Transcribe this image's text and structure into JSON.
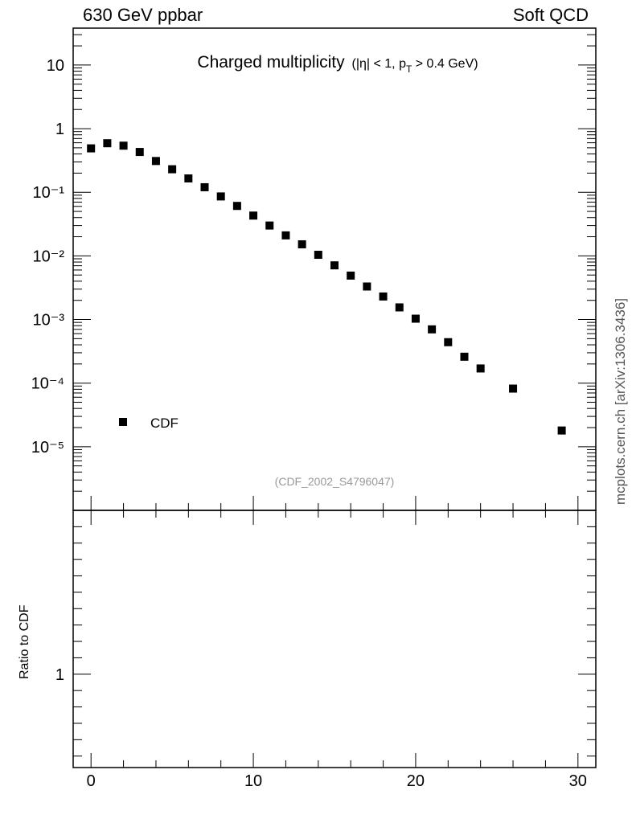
{
  "header": {
    "left": "630 GeV ppbar",
    "right": "Soft QCD",
    "side": "mcplots.cern.ch [arXiv:1306.3436]"
  },
  "chart_data": {
    "type": "scatter",
    "title_main": "Charged multiplicity",
    "title_sub_1": "(|η| < 1, p",
    "title_sub_T": "T",
    "title_sub_2": " > 0.4 GeV)",
    "watermark": "(CDF_2002_S4796047)",
    "legend_label": "CDF",
    "legend_position": "left",
    "ratio_ylabel": "Ratio to CDF",
    "y_scale": "log",
    "xlim": [
      -1.1,
      31.1
    ],
    "ylim_log10": [
      -6.0,
      1.58
    ],
    "ratio_ylim": [
      0.43,
      2.0
    ],
    "x_ticks": [
      0,
      10,
      20,
      30
    ],
    "y_ticks": [
      "10",
      "1",
      "10⁻¹",
      "10⁻²",
      "10⁻³",
      "10⁻⁴",
      "10⁻⁵"
    ],
    "ratio_ticks": [
      "1"
    ],
    "series": [
      {
        "name": "CDF",
        "marker": "square",
        "color": "#000000",
        "x": [
          0,
          1,
          2,
          3,
          4,
          5,
          6,
          7,
          8,
          9,
          10,
          11,
          12,
          13,
          14,
          15,
          16,
          17,
          18,
          19,
          20,
          21,
          22,
          23,
          24,
          26,
          29
        ],
        "y": [
          0.49,
          0.59,
          0.54,
          0.43,
          0.31,
          0.23,
          0.165,
          0.12,
          0.086,
          0.061,
          0.043,
          0.03,
          0.021,
          0.0152,
          0.0104,
          0.0071,
          0.0049,
          0.0033,
          0.0023,
          0.00155,
          0.00103,
          0.0007,
          0.00044,
          0.00026,
          0.00017,
          8.2e-05,
          1.8e-05
        ]
      }
    ]
  }
}
